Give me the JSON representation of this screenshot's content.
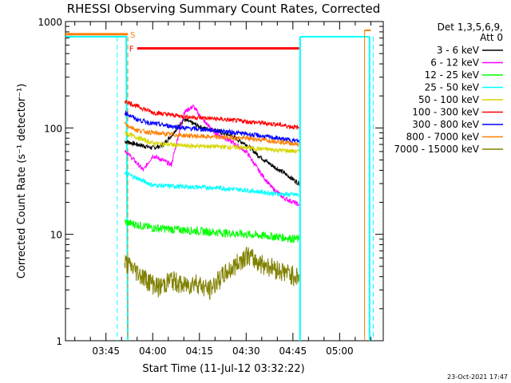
{
  "chart_data": {
    "type": "line",
    "title": "RHESSI Observing Summary Count Rates, Corrected",
    "xlabel": "Start Time (11-Jul-12 03:32:22)",
    "ylabel": "Corrected Count Rate (s⁻¹ detector⁻¹)",
    "x_ticks": [
      "03:45",
      "04:00",
      "04:15",
      "04:30",
      "04:45",
      "05:00"
    ],
    "x_ticks_minutes": [
      225,
      240,
      255,
      270,
      285,
      300
    ],
    "xlim_minutes": [
      212,
      314
    ],
    "y_scale": "log",
    "ylim": [
      1,
      1000
    ],
    "y_ticks": [
      "1",
      "10",
      "100",
      "1000"
    ],
    "y_tick_values": [
      1,
      10,
      100,
      1000
    ],
    "legend_title": "Det 1,3,5,6,9,",
    "legend_subtitle": "Att 0",
    "legend_position": "right",
    "stamp": "23-Oct-2021 17:47",
    "flags": [
      {
        "label": "S",
        "color": "#ff7f00",
        "x_range": [
          212,
          232
        ],
        "level": 760
      },
      {
        "label": "F",
        "color": "#ff0000",
        "x_range": [
          235,
          287
        ],
        "level": 560
      }
    ],
    "series": [
      {
        "name": "3 - 6 keV",
        "color": "#000000",
        "x": [
          231,
          235,
          240,
          243,
          246,
          250,
          253,
          256,
          260,
          265,
          270,
          274,
          278,
          282,
          285,
          287
        ],
        "y": [
          75,
          70,
          65,
          68,
          85,
          120,
          110,
          100,
          95,
          85,
          70,
          55,
          45,
          38,
          33,
          30
        ]
      },
      {
        "name": "6 - 12 keV",
        "color": "#ff00ff",
        "x": [
          231,
          234,
          237,
          240,
          243,
          246,
          250,
          253,
          256,
          260,
          265,
          270,
          274,
          278,
          282,
          287
        ],
        "y": [
          62,
          50,
          40,
          55,
          50,
          45,
          140,
          160,
          120,
          90,
          75,
          60,
          40,
          28,
          22,
          19
        ]
      },
      {
        "name": "12 - 25 keV",
        "color": "#00ff00",
        "x": [
          231,
          240,
          250,
          260,
          270,
          280,
          287
        ],
        "y": [
          13,
          11.5,
          11,
          10.5,
          10,
          9.5,
          9
        ]
      },
      {
        "name": "25 - 50 keV",
        "color": "#00ffff",
        "x": [
          231,
          240,
          250,
          260,
          270,
          280,
          287
        ],
        "y": [
          38,
          29,
          28,
          27.5,
          26,
          24,
          23.5
        ]
      },
      {
        "name": "50 - 100 keV",
        "color": "#d6d600",
        "x": [
          231,
          240,
          250,
          260,
          270,
          280,
          287
        ],
        "y": [
          90,
          72,
          68,
          67,
          65,
          62,
          60
        ]
      },
      {
        "name": "100 - 300 keV",
        "color": "#ff0000",
        "x": [
          231,
          235,
          240,
          250,
          260,
          270,
          280,
          287
        ],
        "y": [
          180,
          160,
          140,
          128,
          122,
          115,
          108,
          100
        ]
      },
      {
        "name": "300 - 800 keV",
        "color": "#0000ff",
        "x": [
          231,
          235,
          240,
          250,
          260,
          270,
          280,
          287
        ],
        "y": [
          140,
          120,
          110,
          100,
          95,
          88,
          80,
          75
        ]
      },
      {
        "name": "800 - 7000 keV",
        "color": "#ff7f00",
        "x": [
          231,
          235,
          240,
          250,
          260,
          270,
          280,
          287
        ],
        "y": [
          110,
          95,
          90,
          85,
          82,
          80,
          75,
          70
        ]
      },
      {
        "name": "7000 - 15000 keV",
        "color": "#808000",
        "x": [
          231,
          235,
          238,
          242,
          246,
          250,
          254,
          258,
          262,
          266,
          270,
          274,
          278,
          282,
          287
        ],
        "y": [
          5.5,
          4.5,
          3.8,
          3.2,
          3.8,
          3.3,
          3.6,
          3.0,
          4.0,
          5.0,
          6.5,
          5.5,
          5.0,
          4.5,
          4.0
        ]
      }
    ]
  }
}
